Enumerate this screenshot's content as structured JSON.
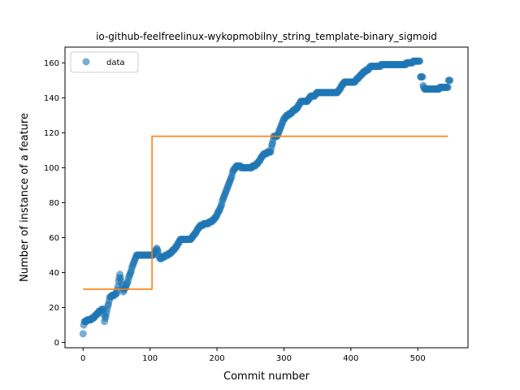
{
  "chart_data": {
    "type": "scatter",
    "title": "io-github-feelfreelinux-wykopmobilny_string_template-binary_sigmoid",
    "xlabel": "Commit number",
    "ylabel": "Number of instance of a feature",
    "xlim": [
      -27,
      575
    ],
    "ylim": [
      -3,
      169
    ],
    "xticks": [
      0,
      100,
      200,
      300,
      400,
      500
    ],
    "yticks": [
      0,
      20,
      40,
      60,
      80,
      100,
      120,
      140,
      160
    ],
    "grid": false,
    "legend": {
      "position": "top-left",
      "entries": [
        "data"
      ]
    },
    "colors": {
      "data": "#1f77b4",
      "fit": "#ff7f0e"
    },
    "series": [
      {
        "name": "data",
        "kind": "scatter",
        "keypoints": [
          [
            0,
            5
          ],
          [
            1,
            10
          ],
          [
            2,
            12
          ],
          [
            10,
            13
          ],
          [
            15,
            14
          ],
          [
            20,
            16
          ],
          [
            25,
            18
          ],
          [
            30,
            19
          ],
          [
            32,
            12
          ],
          [
            35,
            17
          ],
          [
            40,
            26
          ],
          [
            45,
            27
          ],
          [
            50,
            28
          ],
          [
            55,
            39
          ],
          [
            60,
            29
          ],
          [
            65,
            33
          ],
          [
            70,
            39
          ],
          [
            75,
            45
          ],
          [
            80,
            50
          ],
          [
            100,
            50
          ],
          [
            105,
            50
          ],
          [
            110,
            54
          ],
          [
            115,
            48
          ],
          [
            120,
            49
          ],
          [
            130,
            51
          ],
          [
            140,
            55
          ],
          [
            145,
            59
          ],
          [
            160,
            59
          ],
          [
            165,
            61
          ],
          [
            175,
            67
          ],
          [
            185,
            68
          ],
          [
            195,
            70
          ],
          [
            200,
            73
          ],
          [
            205,
            77
          ],
          [
            210,
            83
          ],
          [
            215,
            88
          ],
          [
            220,
            93
          ],
          [
            225,
            99
          ],
          [
            230,
            101
          ],
          [
            240,
            100
          ],
          [
            250,
            100
          ],
          [
            260,
            102
          ],
          [
            270,
            108
          ],
          [
            280,
            109
          ],
          [
            285,
            118
          ],
          [
            290,
            118
          ],
          [
            295,
            123
          ],
          [
            300,
            128
          ],
          [
            305,
            130
          ],
          [
            310,
            131
          ],
          [
            315,
            133
          ],
          [
            320,
            134
          ],
          [
            325,
            138
          ],
          [
            335,
            138
          ],
          [
            340,
            141
          ],
          [
            345,
            141
          ],
          [
            350,
            143
          ],
          [
            380,
            143
          ],
          [
            390,
            149
          ],
          [
            400,
            149
          ],
          [
            405,
            149
          ],
          [
            410,
            151
          ],
          [
            415,
            153
          ],
          [
            420,
            155
          ],
          [
            425,
            156
          ],
          [
            430,
            158
          ],
          [
            440,
            158
          ],
          [
            450,
            159
          ],
          [
            480,
            159
          ],
          [
            485,
            160
          ],
          [
            490,
            160
          ],
          [
            495,
            161
          ],
          [
            503,
            161
          ],
          [
            504,
            152
          ],
          [
            507,
            152
          ],
          [
            508,
            147
          ],
          [
            510,
            145
          ],
          [
            530,
            145
          ],
          [
            535,
            146
          ],
          [
            545,
            146
          ],
          [
            546,
            150
          ],
          [
            548,
            150
          ]
        ]
      },
      {
        "name": "",
        "kind": "step-line",
        "x": [
          0,
          103,
          103,
          545
        ],
        "y": [
          30.5,
          30.5,
          118,
          118
        ]
      }
    ]
  }
}
